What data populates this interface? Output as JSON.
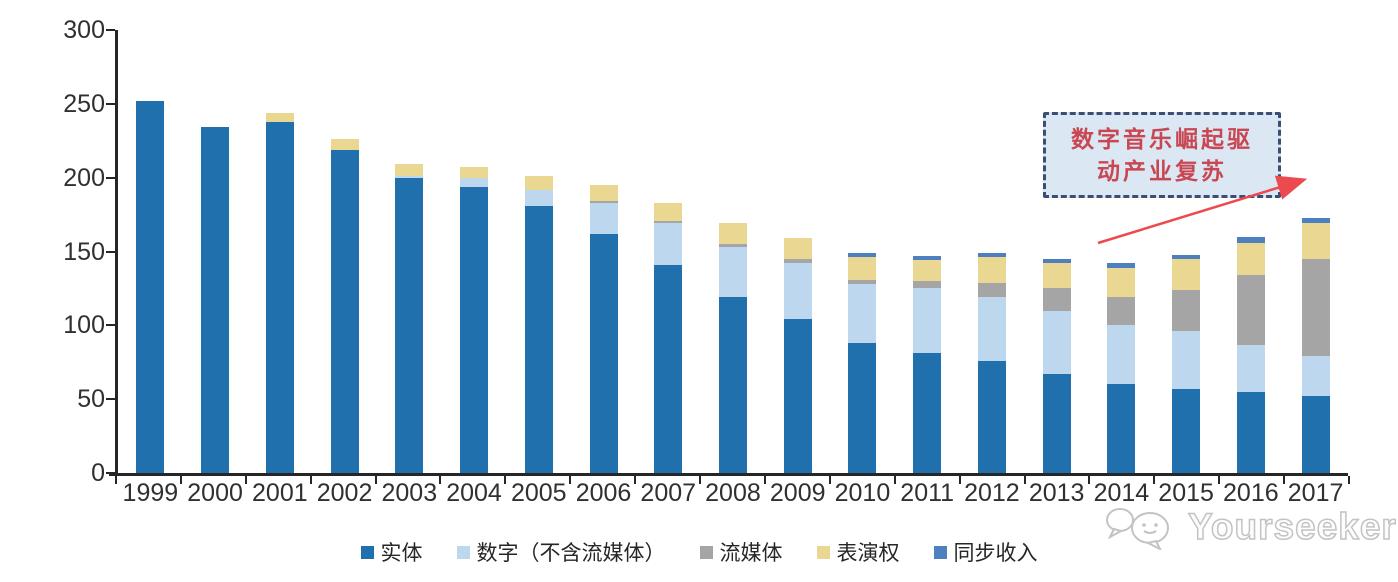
{
  "chart_data": {
    "type": "bar",
    "stacked": true,
    "title": "",
    "xlabel": "",
    "ylabel": "",
    "categories": [
      "1999",
      "2000",
      "2001",
      "2002",
      "2003",
      "2004",
      "2005",
      "2006",
      "2007",
      "2008",
      "2009",
      "2010",
      "2011",
      "2012",
      "2013",
      "2014",
      "2015",
      "2016",
      "2017"
    ],
    "series": [
      {
        "key": "physical",
        "name": "实体",
        "color": "#2070AD",
        "values": [
          252,
          234,
          238,
          219,
          200,
          194,
          181,
          162,
          141,
          119,
          104,
          88,
          81,
          76,
          67,
          60,
          57,
          55,
          52
        ]
      },
      {
        "key": "digital-ex-streaming",
        "name": "数字（不含流媒体）",
        "color": "#BDD7EE",
        "values": [
          0,
          0,
          0,
          0,
          1,
          6,
          11,
          21,
          28,
          34,
          38,
          40,
          44,
          43,
          43,
          40,
          39,
          32,
          27
        ]
      },
      {
        "key": "streaming",
        "name": "流媒体",
        "color": "#A5A5A5",
        "values": [
          0,
          0,
          0,
          0,
          0,
          0,
          0,
          1,
          2,
          2,
          3,
          3,
          5,
          10,
          15,
          19,
          28,
          47,
          66
        ]
      },
      {
        "key": "performance-rights",
        "name": "表演权",
        "color": "#EAD792",
        "values": [
          0,
          0,
          6,
          7,
          8,
          7,
          9,
          11,
          12,
          14,
          14,
          15,
          14,
          17,
          17,
          20,
          21,
          22,
          24
        ]
      },
      {
        "key": "sync-revenue",
        "name": "同步收入",
        "color": "#4E7FBE",
        "values": [
          0,
          0,
          0,
          0,
          0,
          0,
          0,
          0,
          0,
          0,
          0,
          3,
          3,
          3,
          3,
          3,
          3,
          4,
          4
        ]
      }
    ],
    "ylim": [
      0,
      300
    ],
    "yticks": [
      0,
      50,
      100,
      150,
      200,
      250,
      300
    ],
    "grid": false,
    "legend_position": "bottom"
  },
  "annotation": {
    "line1": "数字音乐崛起驱",
    "line2": "动产业复苏",
    "text_color": "#c94752",
    "box_fill": "#dce7f4",
    "border_color": "#3c4e74",
    "arrow_color": "#ec4a4f"
  },
  "watermark": {
    "text": "Yourseeker"
  }
}
